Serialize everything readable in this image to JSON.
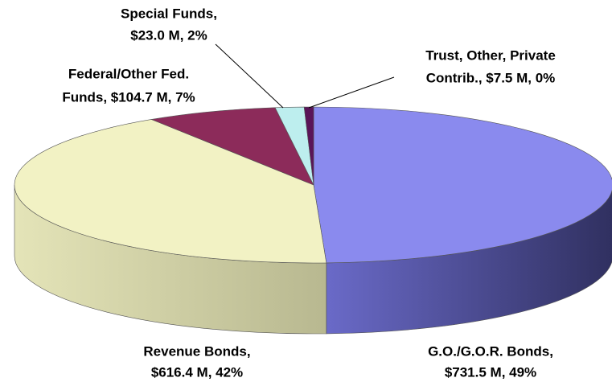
{
  "chart_data": {
    "type": "pie",
    "three_d": true,
    "values": [
      731.5,
      616.4,
      104.7,
      23.0,
      7.5
    ],
    "value_labels": [
      [
        "G.O./G.O.R. Bonds,",
        "$731.5 M, 49%"
      ],
      [
        "Revenue Bonds,",
        "$616.4 M, 42%"
      ],
      [
        "Federal/Other Fed.",
        "Funds, $104.7 M, 7%"
      ],
      [
        "Special Funds,",
        "$23.0 M, 2%"
      ],
      [
        "Trust, Other, Private",
        "Contrib., $7.5 M, 0%"
      ]
    ],
    "colors": [
      "#8a8aee",
      "#f2f2c4",
      "#8c2b5a",
      "#bdeeee",
      "#5a1458"
    ]
  }
}
